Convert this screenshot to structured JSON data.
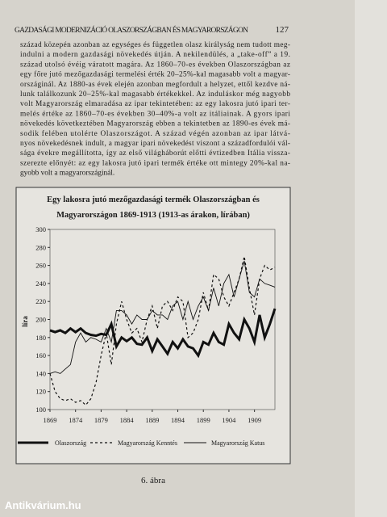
{
  "header": {
    "title": "GAZDASÁGI MODERNIZÁCIÓ OLASZORSZÁGBAN ÉS MAGYARORSZÁGON",
    "page": "127"
  },
  "body": {
    "lines": [
      "század közepén azonban az egységes és független olasz királyság nem tudott meg-",
      "indulni a modern gazdasági növekedés útján. A nekilendülés, a „take-off” a 19.",
      "század utolsó évéig váratott magára. Az 1860–70-es években Olaszországban az",
      "egy főre jutó mezőgazdasági termelési érték 20–25%-kal magasabb volt a magyar-",
      "országinál. Az 1880-as évek elején azonban megfordult a helyzet, ettől kezdve ná-",
      "lunk találkozunk 20–25%-kal magasabb értékekkel. Az induláskor még nagyobb",
      "volt Magyarország elmaradása az ipar tekintetében: az egy lakosra jutó ipari ter-",
      "melés értéke az 1860–70-es években 30–40%-a volt az itáliainak. A gyors ipari",
      "növekedés következtében Magyarország ebben a tekintetben az 1890-es évek má-",
      "sodik felében utolérte Olaszországot. A század végén azonban az ipar látvá-",
      "nyos növekedésnek indult, a magyar ipari növekedést viszont a századfordulói vál-",
      "sága évekre megállította, így az első világháborút előtti évtizedben Itália vissza-",
      "szerezte előnyét: az egy lakosra jutó ipari termék értéke ott mintegy 20%-kal na-",
      "gyobb volt a magyarországinál."
    ]
  },
  "chart_data": {
    "type": "line",
    "title": [
      "Egy lakosra jutó mezőgazdasági termék Olaszországban és",
      "Magyarországon 1869-1913 (1913-as árakon, lírában)"
    ],
    "ylabel": "líra",
    "x": [
      1869,
      1870,
      1871,
      1872,
      1873,
      1874,
      1875,
      1876,
      1877,
      1878,
      1879,
      1880,
      1881,
      1882,
      1883,
      1884,
      1885,
      1886,
      1887,
      1888,
      1889,
      1890,
      1891,
      1892,
      1893,
      1894,
      1895,
      1896,
      1897,
      1898,
      1899,
      1900,
      1901,
      1902,
      1903,
      1904,
      1905,
      1906,
      1907,
      1908,
      1909,
      1910,
      1911,
      1912,
      1913
    ],
    "xlim": [
      1869,
      1913
    ],
    "xticks": [
      1869,
      1874,
      1879,
      1884,
      1889,
      1894,
      1899,
      1904,
      1909
    ],
    "ylim": [
      100,
      300
    ],
    "yticks": [
      100,
      120,
      140,
      160,
      180,
      200,
      220,
      240,
      260,
      280,
      300
    ],
    "series": [
      {
        "name": "Olaszország",
        "color": "#111111",
        "style": "thick",
        "values": [
          188,
          186,
          188,
          185,
          190,
          186,
          190,
          185,
          183,
          182,
          184,
          183,
          195,
          170,
          180,
          176,
          180,
          173,
          172,
          180,
          165,
          178,
          170,
          162,
          175,
          168,
          178,
          170,
          168,
          160,
          175,
          172,
          185,
          175,
          172,
          195,
          185,
          178,
          200,
          190,
          175,
          205,
          180,
          195,
          212
        ]
      },
      {
        "name": "Magyarország Kenntés",
        "color": "#111111",
        "style": "dashed",
        "values": [
          140,
          120,
          112,
          110,
          112,
          108,
          110,
          105,
          112,
          130,
          160,
          185,
          150,
          195,
          220,
          200,
          185,
          190,
          175,
          200,
          215,
          190,
          215,
          220,
          210,
          225,
          220,
          180,
          185,
          200,
          230,
          210,
          250,
          245,
          225,
          215,
          230,
          245,
          270,
          235,
          205,
          245,
          260,
          255,
          258
        ]
      },
      {
        "name": "Magyarország Katus",
        "color": "#111111",
        "style": "thin",
        "values": [
          140,
          142,
          140,
          145,
          150,
          175,
          185,
          175,
          180,
          178,
          175,
          190,
          175,
          210,
          210,
          205,
          195,
          205,
          200,
          200,
          210,
          205,
          205,
          200,
          215,
          220,
          200,
          220,
          200,
          215,
          225,
          210,
          235,
          215,
          240,
          250,
          225,
          245,
          265,
          230,
          225,
          245,
          240,
          238,
          236
        ]
      }
    ]
  },
  "caption": "6. ábra",
  "watermark": "Antikvárium.hu"
}
